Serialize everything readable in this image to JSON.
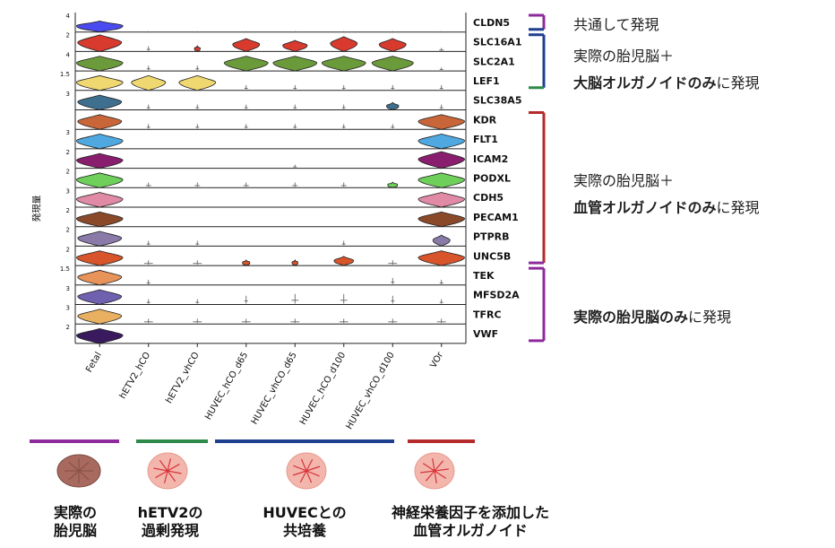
{
  "chart_data": {
    "type": "violin",
    "ylabel": "発現量",
    "categories": [
      "Fetal",
      "hETV2_hCO",
      "hETV2_vhCO",
      "HUVEC_hCO_d65",
      "HUVEC_vhCO_d65",
      "HUVEC_hCO_d100",
      "HUVEC_vhCO_d100",
      "VOr"
    ],
    "genes": [
      {
        "name": "CLDN5",
        "tick": "4",
        "color": "#4a4af0",
        "widths": [
          0.95,
          0.05,
          0.05,
          0.05,
          0.05,
          0.05,
          0.05,
          0.05
        ],
        "heights": [
          0.6,
          0,
          0,
          0,
          0,
          0,
          0,
          0
        ],
        "bottom": [
          0,
          0.85,
          0.8,
          0.8,
          0.8,
          0.8,
          0.8,
          0.85
        ]
      },
      {
        "name": "SLC16A1",
        "tick": "2",
        "color": "#d83a2e",
        "widths": [
          0.9,
          0.04,
          0.12,
          0.55,
          0.5,
          0.55,
          0.55,
          0.05
        ],
        "heights": [
          0.9,
          0.3,
          0.3,
          0.7,
          0.6,
          0.8,
          0.7,
          0.2
        ],
        "bottom": [
          0,
          0,
          0,
          0,
          0,
          0,
          0,
          0
        ]
      },
      {
        "name": "SLC2A1",
        "tick": "4",
        "color": "#6a9a3a",
        "widths": [
          0.95,
          0.04,
          0.04,
          0.9,
          0.9,
          0.9,
          0.85,
          0.04
        ],
        "heights": [
          0.8,
          0.3,
          0.3,
          0.8,
          0.8,
          0.8,
          0.8,
          0.2
        ],
        "bottom": [
          0,
          0,
          0,
          0,
          0,
          0,
          0,
          0
        ]
      },
      {
        "name": "LEF1",
        "tick": "1.5",
        "color": "#f0d870",
        "widths": [
          0.95,
          0.7,
          0.75,
          0.04,
          0.04,
          0.04,
          0.04,
          0.04
        ],
        "heights": [
          0.8,
          0.8,
          0.8,
          0.3,
          0.3,
          0.3,
          0.3,
          0.3
        ],
        "bottom": [
          0,
          0,
          0,
          0,
          0,
          0,
          0,
          0
        ]
      },
      {
        "name": "SLC38A5",
        "tick": "3",
        "color": "#3f6f8e",
        "widths": [
          0.9,
          0.04,
          0.04,
          0.04,
          0.04,
          0.04,
          0.25,
          0.04
        ],
        "heights": [
          0.8,
          0.3,
          0.3,
          0.3,
          0.3,
          0.3,
          0.4,
          0.3
        ],
        "bottom": [
          0,
          0,
          0,
          0,
          0,
          0,
          0,
          0
        ]
      },
      {
        "name": "KDR",
        "tick": "",
        "color": "#c8663a",
        "widths": [
          0.9,
          0.04,
          0.04,
          0.04,
          0.04,
          0.04,
          0.04,
          0.95
        ],
        "heights": [
          0.8,
          0.3,
          0.3,
          0.3,
          0.3,
          0.3,
          0.3,
          0.8
        ],
        "bottom": [
          0,
          0,
          0,
          0,
          0,
          0,
          0,
          0
        ]
      },
      {
        "name": "FLT1",
        "tick": "3",
        "color": "#4fa8e0",
        "widths": [
          0.95,
          0,
          0,
          0,
          0,
          0,
          0,
          0.95
        ],
        "heights": [
          0.8,
          0,
          0,
          0,
          0,
          0,
          0,
          0.8
        ],
        "bottom": [
          0,
          0,
          0,
          0,
          0,
          0,
          0,
          0
        ]
      },
      {
        "name": "ICAM2",
        "tick": "2",
        "color": "#8a1e6e",
        "widths": [
          0.95,
          0,
          0,
          0,
          0.04,
          0,
          0,
          0.95
        ],
        "heights": [
          0.8,
          0,
          0,
          0,
          0.2,
          0,
          0,
          0.9
        ],
        "bottom": [
          0,
          0,
          0,
          0,
          0,
          0,
          0,
          0
        ]
      },
      {
        "name": "PODXL",
        "tick": "2",
        "color": "#6ed05a",
        "widths": [
          0.95,
          0.06,
          0.06,
          0.06,
          0.06,
          0.06,
          0.2,
          0.95
        ],
        "heights": [
          0.8,
          0.3,
          0.3,
          0.3,
          0.3,
          0.3,
          0.3,
          0.8
        ],
        "bottom": [
          0,
          0,
          0,
          0,
          0,
          0,
          0,
          0
        ]
      },
      {
        "name": "CDH5",
        "tick": "3",
        "color": "#e08aa6",
        "widths": [
          0.95,
          0,
          0,
          0,
          0,
          0,
          0,
          0.95
        ],
        "heights": [
          0.8,
          0,
          0,
          0,
          0,
          0,
          0,
          0.8
        ],
        "bottom": [
          0,
          0,
          0,
          0,
          0,
          0,
          0,
          0
        ]
      },
      {
        "name": "PECAM1",
        "tick": "2",
        "color": "#8a4a2a",
        "widths": [
          0.95,
          0,
          0,
          0,
          0,
          0,
          0,
          0.95
        ],
        "heights": [
          0.8,
          0,
          0,
          0,
          0,
          0,
          0,
          0.8
        ],
        "bottom": [
          0,
          0,
          0,
          0,
          0,
          0,
          0,
          0
        ]
      },
      {
        "name": "PTPRB",
        "tick": "2",
        "color": "#8a7aa8",
        "widths": [
          0.9,
          0.04,
          0.04,
          0,
          0,
          0.04,
          0,
          0.35
        ],
        "heights": [
          0.8,
          0.3,
          0.3,
          0,
          0,
          0.3,
          0,
          0.6
        ],
        "bottom": [
          0,
          0,
          0,
          0,
          0,
          0,
          0,
          0
        ]
      },
      {
        "name": "UNC5B",
        "tick": "2",
        "color": "#d8542a",
        "widths": [
          0.95,
          0.1,
          0.1,
          0.15,
          0.12,
          0.4,
          0.1,
          0.95
        ],
        "heights": [
          0.8,
          0.3,
          0.3,
          0.3,
          0.3,
          0.5,
          0.3,
          0.8
        ],
        "bottom": [
          0,
          0,
          0,
          0,
          0,
          0,
          0,
          0
        ]
      },
      {
        "name": "TEK",
        "tick": "1.5",
        "color": "#e8935a",
        "widths": [
          0.9,
          0.04,
          0,
          0,
          0,
          0,
          0.04,
          0.04
        ],
        "heights": [
          0.8,
          0.3,
          0,
          0,
          0,
          0,
          0.4,
          0.3
        ],
        "bottom": [
          0,
          0,
          0,
          0,
          0,
          0,
          0,
          0
        ]
      },
      {
        "name": "MFSD2A",
        "tick": "3",
        "color": "#7060b0",
        "widths": [
          0.9,
          0.04,
          0.04,
          0.04,
          0.08,
          0.08,
          0.04,
          0.04
        ],
        "heights": [
          0.8,
          0.3,
          0.3,
          0.5,
          0.6,
          0.6,
          0.5,
          0.3
        ],
        "bottom": [
          0,
          0,
          0,
          0,
          0,
          0,
          0,
          0
        ]
      },
      {
        "name": "TFRC",
        "tick": "3",
        "color": "#e8b060",
        "widths": [
          0.9,
          0.1,
          0.1,
          0.1,
          0.1,
          0.1,
          0.1,
          0.1
        ],
        "heights": [
          0.8,
          0.3,
          0.3,
          0.3,
          0.3,
          0.3,
          0.3,
          0.3
        ],
        "bottom": [
          0,
          0,
          0,
          0,
          0,
          0,
          0,
          0
        ]
      },
      {
        "name": "VWF",
        "tick": "2",
        "color": "#3a1a5e",
        "widths": [
          0.95,
          0,
          0,
          0,
          0,
          0,
          0,
          0
        ],
        "heights": [
          0.8,
          0,
          0,
          0,
          0,
          0,
          0,
          0
        ],
        "bottom": [
          0,
          0,
          0,
          0,
          0,
          0,
          0,
          0
        ]
      }
    ],
    "brackets": [
      {
        "from": "CLDN5",
        "to": "CLDN5",
        "top_color": "#8e2a9c",
        "bottom_color": "#1f3f8f"
      },
      {
        "from": "SLC16A1",
        "to": "LEF1",
        "top_color": "#1f3f8f",
        "bottom_color": "#2e8a4a"
      },
      {
        "from": "KDR",
        "to": "UNC5B",
        "top_color": "#b52a2a",
        "bottom_color": "#8e2a9c"
      },
      {
        "from": "TEK",
        "to": "VWF",
        "top_color": "#8e2a9c",
        "bottom_color": "#8e2a9c"
      }
    ]
  },
  "annotations": {
    "common": "共通して発現",
    "a1_line1": "実際の胎児脳＋",
    "a1_bold": "大脳オルガノイドのみ",
    "a1_tail": "に発現",
    "a2_line1": "実際の胎児脳＋",
    "a2_bold": "血管オルガノイドのみ",
    "a2_tail": "に発現",
    "a3_bold": "実際の胎児脳のみ",
    "a3_tail": "に発現"
  },
  "groups": [
    {
      "name": "fetal",
      "color": "#8e2a9c",
      "label1": "実際の",
      "label2": "胎児脳"
    },
    {
      "name": "etv2",
      "color": "#2e8a4a",
      "label1": "hETV2の",
      "label2": "過剰発現"
    },
    {
      "name": "huvec",
      "color": "#1f3f8f",
      "label1": "HUVECとの",
      "label2": "共培養"
    },
    {
      "name": "vor",
      "color": "#b52a2a",
      "label1": "神経栄養因子を添加した",
      "label2": "血管オルガノイド"
    }
  ]
}
